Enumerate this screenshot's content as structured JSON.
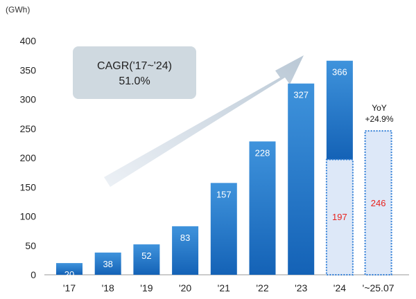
{
  "chart_data": {
    "type": "bar",
    "unit_label": "(GWh)",
    "categories": [
      "'17",
      "'18",
      "'19",
      "'20",
      "'21",
      "'22",
      "'23",
      "'24",
      "'~25.07"
    ],
    "values": [
      20,
      38,
      52,
      83,
      157,
      228,
      327,
      366,
      246
    ],
    "ylim": [
      0,
      400
    ],
    "yticks": [
      0,
      50,
      100,
      150,
      200,
      250,
      300,
      350,
      400
    ],
    "highlight": {
      "category": "'24",
      "partial_value": 197
    },
    "partial_label_color": "#e8221d",
    "bar_color_top": "#3f93dc",
    "bar_color_bottom": "#1462b6",
    "dotted_fill": "#dde8f8",
    "dotted_border": "#2d7cd6",
    "annotations": {
      "cagr_title": "CAGR('17~'24)",
      "cagr_value": "51.0%",
      "yoy_title": "YoY",
      "yoy_value": "+24.9%"
    },
    "grid": false
  }
}
